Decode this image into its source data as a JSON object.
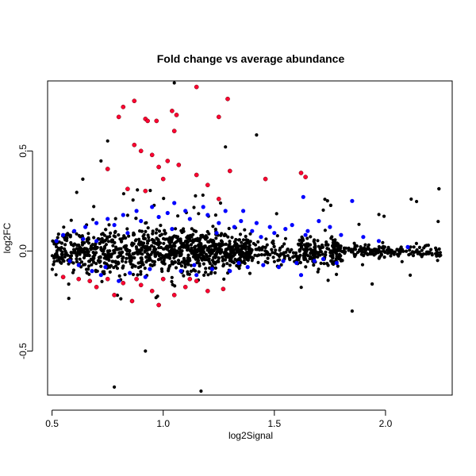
{
  "chart_data": {
    "type": "scatter",
    "title": "Fold change vs average abundance",
    "xlabel": "log2Signal",
    "ylabel": "log2FC",
    "xlim": [
      0.48,
      2.3
    ],
    "ylim": [
      -0.72,
      0.85
    ],
    "x_ticks": [
      0.5,
      1.0,
      1.5,
      2.0
    ],
    "x_tick_labels": [
      "0.5",
      "1.0",
      "1.5",
      "2.0"
    ],
    "y_ticks": [
      -0.5,
      0.0,
      0.5
    ],
    "y_tick_labels": [
      "-0.5",
      "0.0",
      "0.5"
    ],
    "grid": false,
    "legend": "none",
    "colors": {
      "black": "#000000",
      "blue": "#0000ff",
      "red": "#ff0033"
    },
    "series": [
      {
        "color": "blue",
        "points": [
          [
            0.55,
            0.08
          ],
          [
            0.6,
            0.1
          ],
          [
            0.62,
            -0.07
          ],
          [
            0.65,
            0.12
          ],
          [
            0.68,
            -0.1
          ],
          [
            0.7,
            0.14
          ],
          [
            0.72,
            -0.12
          ],
          [
            0.75,
            0.16
          ],
          [
            0.78,
            0.13
          ],
          [
            0.8,
            -0.15
          ],
          [
            0.82,
            0.18
          ],
          [
            0.85,
            -0.11
          ],
          [
            0.88,
            0.2
          ],
          [
            0.9,
            0.15
          ],
          [
            0.92,
            -0.13
          ],
          [
            0.95,
            0.22
          ],
          [
            0.98,
            0.17
          ],
          [
            1.0,
            -0.14
          ],
          [
            1.02,
            0.19
          ],
          [
            1.05,
            0.24
          ],
          [
            1.08,
            -0.1
          ],
          [
            1.1,
            0.2
          ],
          [
            1.12,
            0.16
          ],
          [
            1.15,
            -0.12
          ],
          [
            1.18,
            0.22
          ],
          [
            1.2,
            0.18
          ],
          [
            1.22,
            -0.09
          ],
          [
            1.25,
            0.14
          ],
          [
            1.28,
            0.2
          ],
          [
            1.3,
            -0.1
          ],
          [
            1.32,
            0.12
          ],
          [
            1.35,
            0.15
          ],
          [
            1.38,
            -0.08
          ],
          [
            1.4,
            0.1
          ],
          [
            1.42,
            0.14
          ],
          [
            1.45,
            -0.07
          ],
          [
            1.48,
            0.12
          ],
          [
            1.5,
            0.09
          ],
          [
            1.52,
            -0.08
          ],
          [
            1.55,
            0.11
          ],
          [
            1.58,
            0.13
          ],
          [
            1.6,
            -0.06
          ],
          [
            1.63,
            0.27
          ],
          [
            1.65,
            0.1
          ],
          [
            1.68,
            -0.05
          ],
          [
            1.7,
            0.15
          ],
          [
            1.75,
            0.12
          ],
          [
            1.8,
            0.08
          ],
          [
            1.85,
            0.25
          ],
          [
            1.9,
            0.07
          ],
          [
            0.58,
            -0.05
          ],
          [
            0.64,
            0.06
          ],
          [
            0.74,
            -0.08
          ],
          [
            0.84,
            0.09
          ],
          [
            0.94,
            -0.09
          ],
          [
            1.04,
            0.11
          ],
          [
            1.14,
            -0.07
          ],
          [
            1.24,
            0.09
          ],
          [
            1.34,
            -0.06
          ],
          [
            1.44,
            0.07
          ],
          [
            1.54,
            -0.05
          ],
          [
            1.64,
            0.08
          ],
          [
            1.72,
            -0.04
          ],
          [
            2.1,
            0.02
          ],
          [
            1.97,
            0.05
          ],
          [
            1.78,
            -0.06
          ],
          [
            0.52,
            0.05
          ],
          [
            0.7,
            0.05
          ],
          [
            1.36,
            0.2
          ],
          [
            1.62,
            -0.12
          ]
        ]
      },
      {
        "color": "red",
        "points": [
          [
            1.15,
            0.82
          ],
          [
            1.29,
            0.76
          ],
          [
            0.87,
            0.75
          ],
          [
            0.82,
            0.72
          ],
          [
            1.04,
            0.7
          ],
          [
            1.06,
            0.68
          ],
          [
            0.8,
            0.67
          ],
          [
            1.25,
            0.67
          ],
          [
            0.92,
            0.66
          ],
          [
            0.93,
            0.65
          ],
          [
            0.97,
            0.65
          ],
          [
            1.05,
            0.6
          ],
          [
            0.87,
            0.53
          ],
          [
            0.9,
            0.5
          ],
          [
            0.95,
            0.48
          ],
          [
            1.02,
            0.45
          ],
          [
            1.07,
            0.43
          ],
          [
            0.98,
            0.42
          ],
          [
            0.75,
            0.41
          ],
          [
            1.3,
            0.4
          ],
          [
            1.62,
            0.39
          ],
          [
            1.15,
            0.38
          ],
          [
            1.0,
            0.36
          ],
          [
            1.46,
            0.36
          ],
          [
            1.64,
            0.37
          ],
          [
            1.2,
            0.33
          ],
          [
            0.84,
            0.31
          ],
          [
            0.92,
            0.3
          ],
          [
            1.25,
            0.26
          ],
          [
            0.67,
            -0.15
          ],
          [
            0.7,
            -0.18
          ],
          [
            0.75,
            -0.14
          ],
          [
            0.78,
            -0.22
          ],
          [
            0.82,
            -0.16
          ],
          [
            0.86,
            -0.25
          ],
          [
            0.9,
            -0.17
          ],
          [
            0.95,
            -0.2
          ],
          [
            1.0,
            -0.14
          ],
          [
            1.05,
            -0.22
          ],
          [
            1.1,
            -0.18
          ],
          [
            1.15,
            -0.15
          ],
          [
            1.2,
            -0.2
          ],
          [
            1.27,
            -0.19
          ],
          [
            0.55,
            -0.13
          ],
          [
            0.62,
            -0.14
          ],
          [
            0.88,
            -0.14
          ],
          [
            0.98,
            -0.27
          ],
          [
            1.12,
            -0.14
          ]
        ]
      }
    ]
  }
}
